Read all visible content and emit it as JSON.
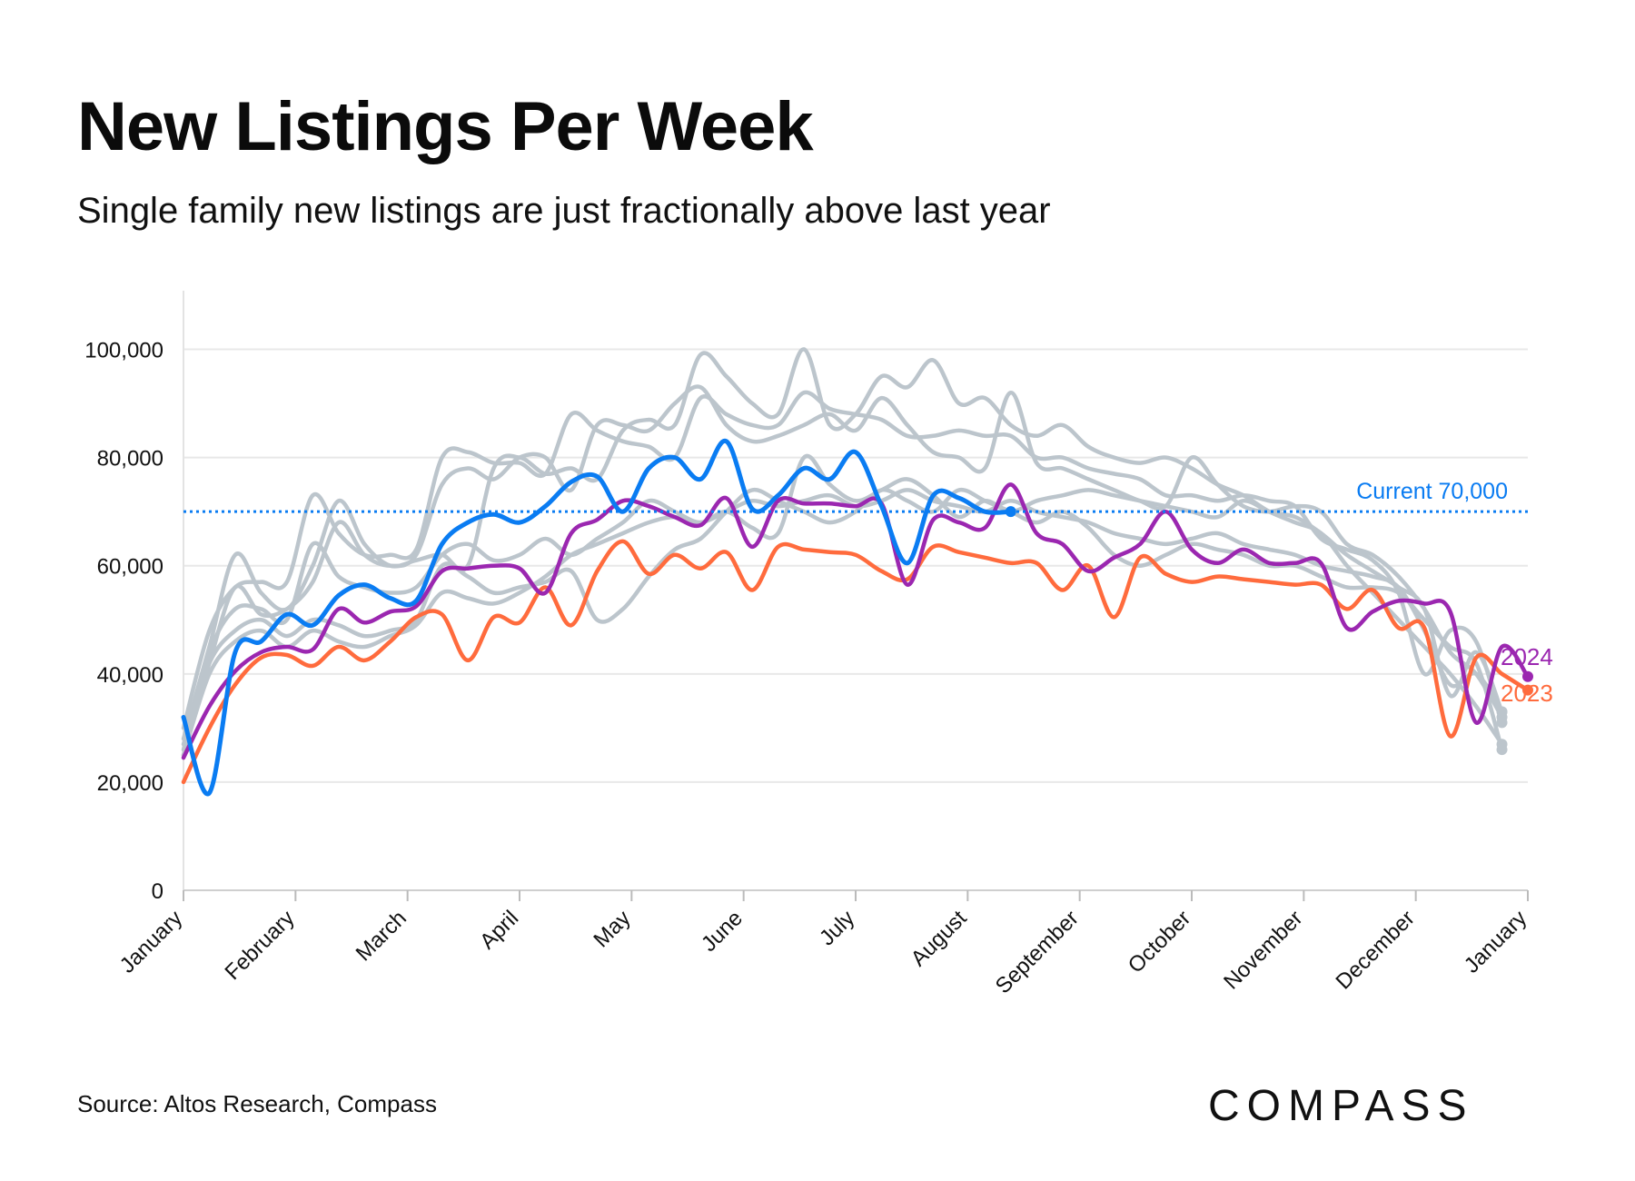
{
  "header": {
    "title": "New Listings Per Week",
    "subtitle": "Single family new listings are just fractionally above last year"
  },
  "footer": {
    "source": "Source: Altos Research, Compass",
    "logo_text": "COMPASS"
  },
  "colors": {
    "history": "#bcc5cc",
    "y2023": "#ff6b3d",
    "y2024": "#9b27b0",
    "y2025": "#0a7cf2",
    "grid": "#e8e8e8"
  },
  "chart_data": {
    "type": "line",
    "title": "New Listings Per Week",
    "subtitle": "Single family new listings are just fractionally above last year",
    "xlabel": "",
    "ylabel": "",
    "x_unit": "week",
    "x_ticks": [
      "January",
      "February",
      "March",
      "April",
      "May",
      "June",
      "July",
      "August",
      "September",
      "October",
      "November",
      "December",
      "January"
    ],
    "ylim": [
      0,
      110000
    ],
    "y_ticks": [
      "0",
      "20,000",
      "40,000",
      "60,000",
      "80,000",
      "100,000"
    ],
    "y_tick_values": [
      0,
      20000,
      40000,
      60000,
      80000,
      100000
    ],
    "grid": true,
    "reference_line": {
      "value": 70000,
      "label": "Current 70,000"
    },
    "series": [
      {
        "name": "",
        "role": "history",
        "values": [
          28000,
          45000,
          62000,
          55000,
          52000,
          60000,
          72000,
          64000,
          60000,
          61000,
          62000,
          60000,
          78000,
          80000,
          77000,
          78000,
          76000,
          85000,
          87000,
          86000,
          99000,
          95000,
          90000,
          88000,
          100000,
          86000,
          88000,
          95000,
          93000,
          98000,
          90000,
          91000,
          86000,
          84000,
          86000,
          82000,
          80000,
          79000,
          80000,
          78000,
          75000,
          73000,
          70000,
          68000,
          66000,
          60000,
          55000,
          50000,
          45000,
          40000,
          34000,
          27000
        ]
      },
      {
        "name": "",
        "role": "history",
        "values": [
          25000,
          42000,
          56000,
          51000,
          52000,
          57000,
          68000,
          62000,
          60000,
          62000,
          75000,
          78000,
          76000,
          80000,
          80000,
          74000,
          86000,
          86000,
          85000,
          90000,
          93000,
          86000,
          83000,
          84000,
          86000,
          88000,
          85000,
          91000,
          86000,
          81000,
          80000,
          78000,
          92000,
          79000,
          78000,
          76000,
          74000,
          72000,
          71000,
          80000,
          75000,
          71000,
          70000,
          71000,
          70000,
          64000,
          62000,
          58000,
          52000,
          44000,
          40000,
          32000
        ]
      },
      {
        "name": "",
        "role": "history",
        "values": [
          30000,
          48000,
          56000,
          57000,
          57000,
          73000,
          66000,
          62000,
          62000,
          63000,
          80000,
          81000,
          79000,
          79000,
          77000,
          88000,
          85000,
          83000,
          82000,
          80000,
          91000,
          88000,
          86000,
          86000,
          92000,
          89000,
          88000,
          87000,
          84000,
          84000,
          85000,
          84000,
          84000,
          80000,
          80000,
          78000,
          77000,
          76000,
          73000,
          73000,
          72000,
          73000,
          72000,
          71000,
          65000,
          63000,
          61000,
          55000,
          40000,
          48000,
          46000,
          31000
        ]
      },
      {
        "name": "",
        "role": "history",
        "values": [
          26000,
          44000,
          52000,
          52000,
          50000,
          64000,
          58000,
          56000,
          55000,
          56000,
          62000,
          64000,
          61000,
          62000,
          65000,
          62000,
          65000,
          68000,
          72000,
          70000,
          68000,
          70000,
          67000,
          66000,
          80000,
          75000,
          72000,
          74000,
          76000,
          73000,
          69000,
          72000,
          70000,
          72000,
          73000,
          74000,
          73000,
          72000,
          71000,
          70000,
          69000,
          72000,
          70000,
          69000,
          66000,
          62000,
          59000,
          56000,
          52000,
          36000,
          44000,
          33000
        ]
      },
      {
        "name": "",
        "role": "history",
        "values": [
          27000,
          42000,
          48000,
          50000,
          47000,
          50000,
          49000,
          47000,
          48000,
          50000,
          60000,
          58000,
          55000,
          56000,
          57000,
          59000,
          50000,
          52000,
          58000,
          63000,
          65000,
          70000,
          74000,
          72000,
          70000,
          68000,
          70000,
          74000,
          72000,
          70000,
          74000,
          72000,
          70000,
          68000,
          70000,
          67000,
          62000,
          60000,
          62000,
          64000,
          63000,
          62000,
          60000,
          60000,
          58000,
          56000,
          56000,
          55000,
          50000,
          45000,
          42000,
          26000
        ]
      },
      {
        "name": "",
        "role": "history",
        "values": [
          25000,
          40000,
          46000,
          48000,
          45000,
          48000,
          46000,
          45000,
          47000,
          49000,
          55000,
          54000,
          53000,
          55000,
          58000,
          62000,
          64000,
          66000,
          68000,
          69000,
          68000,
          70000,
          72000,
          71000,
          72000,
          73000,
          71000,
          72000,
          74000,
          72000,
          71000,
          70000,
          72000,
          70000,
          69000,
          68000,
          66000,
          65000,
          64000,
          65000,
          66000,
          64000,
          63000,
          62000,
          60000,
          59000,
          58000,
          56000,
          48000,
          38000,
          40000,
          33000
        ]
      },
      {
        "name": "2023",
        "role": "2023",
        "values": [
          20000,
          30000,
          38000,
          43000,
          43500,
          41500,
          45000,
          42500,
          46000,
          50500,
          51000,
          42500,
          50500,
          49500,
          56000,
          49000,
          59000,
          64500,
          58500,
          62000,
          59500,
          62500,
          55500,
          63500,
          63000,
          62500,
          62000,
          59000,
          57500,
          63500,
          62500,
          61500,
          60500,
          60500,
          55500,
          60000,
          50500,
          61500,
          58500,
          57000,
          58000,
          57500,
          57000,
          56500,
          56500,
          52000,
          55500,
          48500,
          48500,
          28500,
          43000,
          40000,
          37000
        ]
      },
      {
        "name": "2024",
        "role": "2024",
        "values": [
          24500,
          34000,
          40500,
          44000,
          45000,
          44500,
          52000,
          49500,
          51500,
          52500,
          59000,
          59500,
          60000,
          59500,
          55000,
          66000,
          68500,
          72000,
          71000,
          69000,
          67500,
          72500,
          63500,
          72000,
          71500,
          71500,
          71000,
          71500,
          56500,
          68500,
          68000,
          67000,
          75000,
          66000,
          64000,
          59000,
          61500,
          64000,
          70000,
          63000,
          60500,
          63000,
          60500,
          60500,
          60500,
          48500,
          51500,
          53500,
          53000,
          51500,
          31000,
          45000,
          39500
        ]
      },
      {
        "name": "",
        "role": "2025",
        "values": [
          32000,
          18000,
          44000,
          46000,
          51000,
          49000,
          54500,
          56500,
          54000,
          53500,
          64000,
          68000,
          69500,
          68000,
          71000,
          75500,
          76500,
          70000,
          78000,
          80000,
          76000,
          83000,
          70500,
          73000,
          78000,
          76000,
          81000,
          71000,
          60500,
          73000,
          72500,
          70000,
          70000
        ]
      }
    ],
    "end_labels": [
      {
        "series": "2024",
        "label": "2024"
      },
      {
        "series": "2023",
        "label": "2023"
      }
    ]
  }
}
